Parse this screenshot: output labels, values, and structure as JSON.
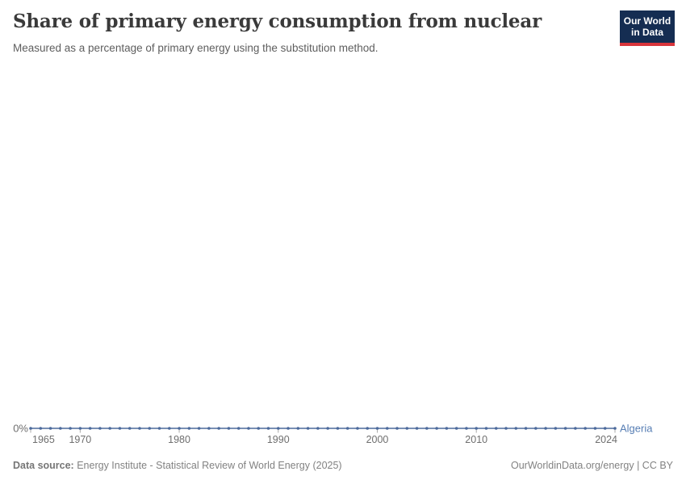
{
  "header": {
    "title": "Share of primary energy consumption from nuclear",
    "subtitle": "Measured as a percentage of primary energy using the substitution method.",
    "logo": {
      "line1": "Our World",
      "line2": "in Data"
    }
  },
  "footer": {
    "source_label": "Data source:",
    "source_text": " Energy Institute - Statistical Review of World Energy (2025)",
    "rights": "OurWorldinData.org/energy | CC BY"
  },
  "colors": {
    "logo_navy": "#152d52",
    "logo_red": "#d8353b",
    "axis_text": "#6e6e6e",
    "tick_mark": "#ababab"
  },
  "chart_data": {
    "type": "line",
    "title": "Share of primary energy consumption from nuclear",
    "subtitle": "Measured as a percentage of primary energy using the substitution method.",
    "unit": "%",
    "grid": false,
    "xlim": [
      1965,
      2024
    ],
    "x_ticks": [
      1965,
      1970,
      1980,
      1990,
      2000,
      2010,
      2024
    ],
    "x_tick_labels": [
      "1965",
      "1970",
      "1980",
      "1990",
      "2000",
      "2010",
      "2024"
    ],
    "y_tick_label": "0%",
    "series": [
      {
        "name": "Algeria",
        "color": "#4c6a9c",
        "label_color": "#577eb4",
        "x": [
          1965,
          1966,
          1967,
          1968,
          1969,
          1970,
          1971,
          1972,
          1973,
          1974,
          1975,
          1976,
          1977,
          1978,
          1979,
          1980,
          1981,
          1982,
          1983,
          1984,
          1985,
          1986,
          1987,
          1988,
          1989,
          1990,
          1991,
          1992,
          1993,
          1994,
          1995,
          1996,
          1997,
          1998,
          1999,
          2000,
          2001,
          2002,
          2003,
          2004,
          2005,
          2006,
          2007,
          2008,
          2009,
          2010,
          2011,
          2012,
          2013,
          2014,
          2015,
          2016,
          2017,
          2018,
          2019,
          2020,
          2021,
          2022,
          2023,
          2024
        ],
        "values": [
          0,
          0,
          0,
          0,
          0,
          0,
          0,
          0,
          0,
          0,
          0,
          0,
          0,
          0,
          0,
          0,
          0,
          0,
          0,
          0,
          0,
          0,
          0,
          0,
          0,
          0,
          0,
          0,
          0,
          0,
          0,
          0,
          0,
          0,
          0,
          0,
          0,
          0,
          0,
          0,
          0,
          0,
          0,
          0,
          0,
          0,
          0,
          0,
          0,
          0,
          0,
          0,
          0,
          0,
          0,
          0,
          0,
          0,
          0,
          0
        ]
      }
    ]
  }
}
